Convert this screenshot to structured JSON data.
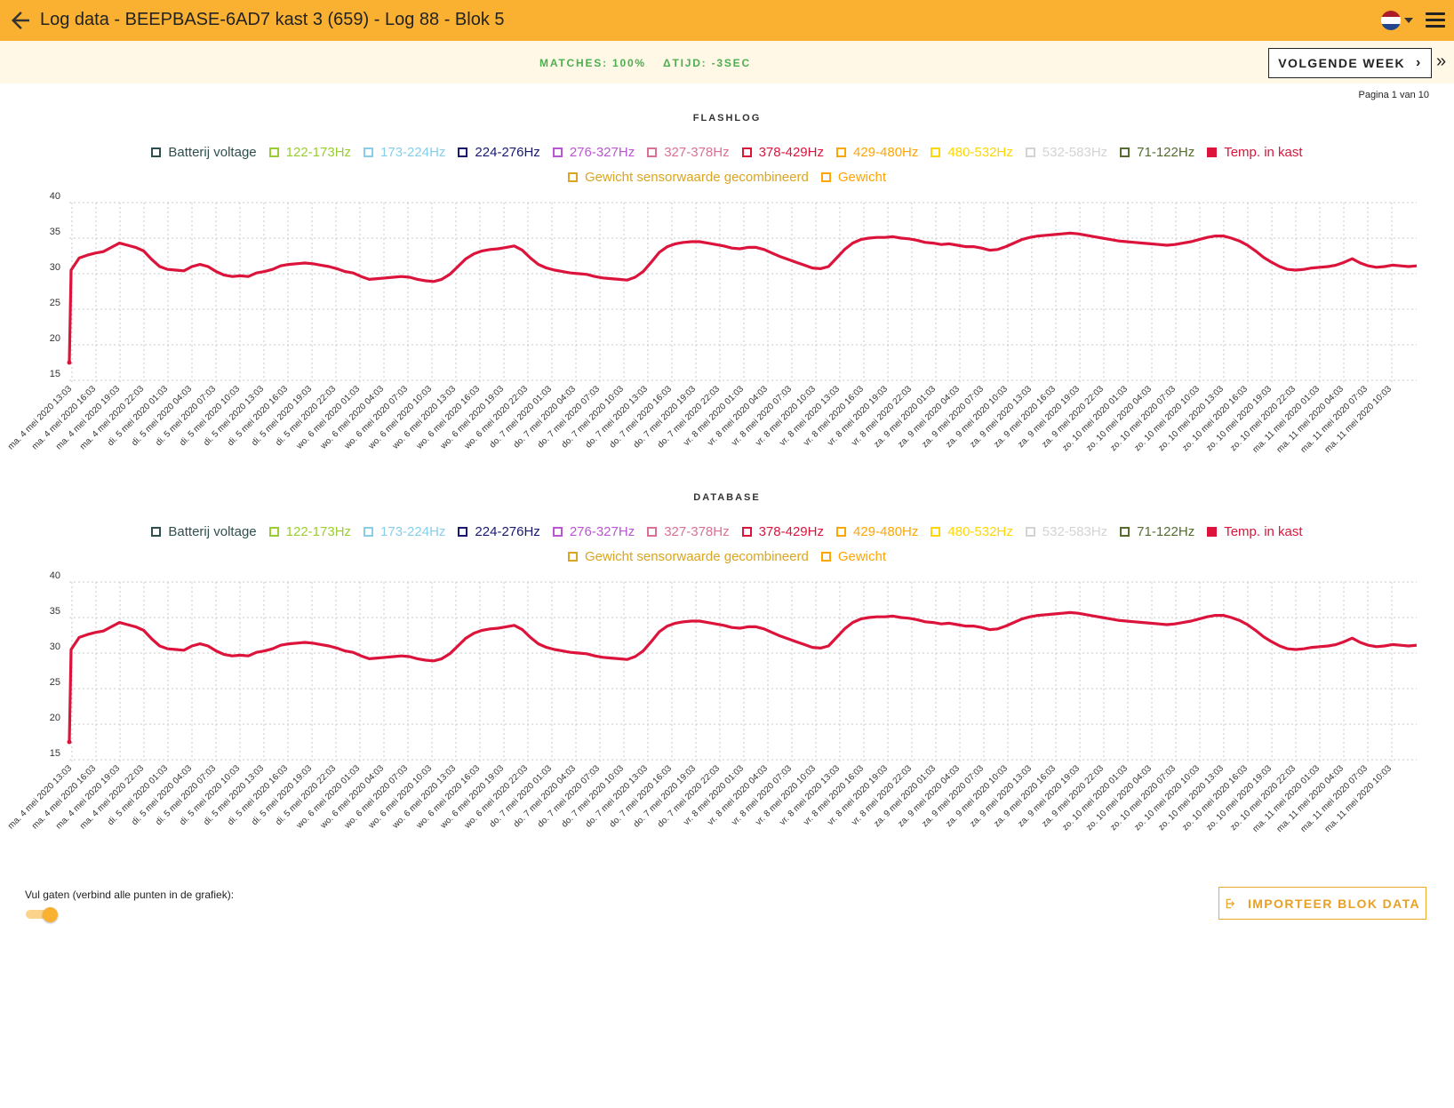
{
  "header": {
    "title": "Log data - BEEPBASE-6AD7 kast 3 (659) - Log 88 - Blok 5"
  },
  "summary": {
    "matches": "MATCHES: 100%",
    "delta": "ΔTIJD: -3SEC"
  },
  "nav": {
    "next_week": "VOLGENDE WEEK",
    "pagina": "Pagina 1 van 10"
  },
  "legend": [
    {
      "label": "Batterij voltage",
      "color": "#2f4f4f",
      "filled": false
    },
    {
      "label": "122-173Hz",
      "color": "#9acd32",
      "filled": false
    },
    {
      "label": "173-224Hz",
      "color": "#87ceeb",
      "filled": false
    },
    {
      "label": "224-276Hz",
      "color": "#191970",
      "filled": false
    },
    {
      "label": "276-327Hz",
      "color": "#ba55d3",
      "filled": false
    },
    {
      "label": "327-378Hz",
      "color": "#db7093",
      "filled": false
    },
    {
      "label": "378-429Hz",
      "color": "#dc143c",
      "filled": false
    },
    {
      "label": "429-480Hz",
      "color": "#ffa500",
      "filled": false
    },
    {
      "label": "480-532Hz",
      "color": "#ffd700",
      "filled": false
    },
    {
      "label": "532-583Hz",
      "color": "#d3d3d3",
      "filled": false
    },
    {
      "label": "71-122Hz",
      "color": "#556b2f",
      "filled": false
    },
    {
      "label": "Temp. in kast",
      "color": "#dc143c",
      "filled": true
    },
    {
      "label": "Gewicht sensorwaarde gecombineerd",
      "color": "#daa520",
      "filled": false
    },
    {
      "label": "Gewicht",
      "color": "#ffa500",
      "filled": false
    }
  ],
  "chart_data": [
    {
      "name": "FLASHLOG",
      "type": "line",
      "yticks": [
        "40",
        "35",
        "30",
        "25",
        "20",
        "15"
      ],
      "ylim": [
        15,
        40
      ],
      "grid": true,
      "xticks": [
        "ma. 4 mei 2020 13:03",
        "ma. 4 mei 2020 16:03",
        "ma. 4 mei 2020 19:03",
        "ma. 4 mei 2020 22:03",
        "di. 5 mei 2020 01:03",
        "di. 5 mei 2020 04:03",
        "di. 5 mei 2020 07:03",
        "di. 5 mei 2020 10:03",
        "di. 5 mei 2020 13:03",
        "di. 5 mei 2020 16:03",
        "di. 5 mei 2020 19:03",
        "di. 5 mei 2020 22:03",
        "wo. 6 mei 2020 01:03",
        "wo. 6 mei 2020 04:03",
        "wo. 6 mei 2020 07:03",
        "wo. 6 mei 2020 10:03",
        "wo. 6 mei 2020 13:03",
        "wo. 6 mei 2020 16:03",
        "wo. 6 mei 2020 19:03",
        "wo. 6 mei 2020 22:03",
        "do. 7 mei 2020 01:03",
        "do. 7 mei 2020 04:03",
        "do. 7 mei 2020 07:03",
        "do. 7 mei 2020 10:03",
        "do. 7 mei 2020 13:03",
        "do. 7 mei 2020 16:03",
        "do. 7 mei 2020 19:03",
        "do. 7 mei 2020 22:03",
        "vr. 8 mei 2020 01:03",
        "vr. 8 mei 2020 04:03",
        "vr. 8 mei 2020 07:03",
        "vr. 8 mei 2020 10:03",
        "vr. 8 mei 2020 13:03",
        "vr. 8 mei 2020 16:03",
        "vr. 8 mei 2020 19:03",
        "vr. 8 mei 2020 22:03",
        "za. 9 mei 2020 01:03",
        "za. 9 mei 2020 04:03",
        "za. 9 mei 2020 07:03",
        "za. 9 mei 2020 10:03",
        "za. 9 mei 2020 13:03",
        "za. 9 mei 2020 16:03",
        "za. 9 mei 2020 19:03",
        "za. 9 mei 2020 22:03",
        "zo. 10 mei 2020 01:03",
        "zo. 10 mei 2020 04:03",
        "zo. 10 mei 2020 07:03",
        "zo. 10 mei 2020 10:03",
        "zo. 10 mei 2020 13:03",
        "zo. 10 mei 2020 16:03",
        "zo. 10 mei 2020 19:03",
        "zo. 10 mei 2020 22:03",
        "ma. 11 mei 2020 01:03",
        "ma. 11 mei 2020 04:03",
        "ma. 11 mei 2020 07:03",
        "ma. 11 mei 2020 10:03"
      ],
      "series": [
        {
          "name": "Temp. in kast",
          "color": "#dc143c",
          "values": [
            17.5,
            30.5,
            32.2,
            32.6,
            32.9,
            33.1,
            33.7,
            34.3,
            34.0,
            33.7,
            33.2,
            32.0,
            31.0,
            30.6,
            30.5,
            30.4,
            31.0,
            31.3,
            31.0,
            30.3,
            29.8,
            29.6,
            29.7,
            29.6,
            30.1,
            30.3,
            30.6,
            31.1,
            31.3,
            31.4,
            31.5,
            31.4,
            31.2,
            31.0,
            30.7,
            30.3,
            30.1,
            29.6,
            29.2,
            29.3,
            29.4,
            29.5,
            29.6,
            29.5,
            29.2,
            29.0,
            28.9,
            29.2,
            29.9,
            31.0,
            32.1,
            32.8,
            33.2,
            33.4,
            33.5,
            33.7,
            33.9,
            33.3,
            32.2,
            31.3,
            30.8,
            30.5,
            30.3,
            30.1,
            30.0,
            29.9,
            29.6,
            29.4,
            29.3,
            29.2,
            29.1,
            29.5,
            30.3,
            31.6,
            33.0,
            33.8,
            34.2,
            34.4,
            34.5,
            34.5,
            34.3,
            34.1,
            33.9,
            33.6,
            33.5,
            33.7,
            33.7,
            33.4,
            32.9,
            32.4,
            32.0,
            31.6,
            31.2,
            30.8,
            30.7,
            31.0,
            32.2,
            33.4,
            34.3,
            34.8,
            35.0,
            35.1,
            35.1,
            35.2,
            35.0,
            34.9,
            34.7,
            34.4,
            34.3,
            34.1,
            34.2,
            34.0,
            33.8,
            33.8,
            33.6,
            33.3,
            33.4,
            33.8,
            34.3,
            34.8,
            35.1,
            35.3,
            35.4,
            35.5,
            35.6,
            35.7,
            35.6,
            35.4,
            35.2,
            35.0,
            34.8,
            34.6,
            34.5,
            34.4,
            34.3,
            34.2,
            34.1,
            34.0,
            34.1,
            34.3,
            34.5,
            34.8,
            35.1,
            35.3,
            35.3,
            35.0,
            34.6,
            34.0,
            33.2,
            32.3,
            31.6,
            31.0,
            30.6,
            30.5,
            30.6,
            30.8,
            30.9,
            31.0,
            31.2,
            31.6,
            32.1,
            31.5,
            31.1,
            30.9,
            31.0,
            31.2,
            31.1,
            31.0,
            31.1
          ]
        }
      ]
    },
    {
      "name": "DATABASE",
      "type": "line",
      "yticks": [
        "40",
        "35",
        "30",
        "25",
        "20",
        "15"
      ],
      "ylim": [
        15,
        40
      ],
      "grid": true,
      "xticks": [
        "ma. 4 mei 2020 13:03",
        "ma. 4 mei 2020 16:03",
        "ma. 4 mei 2020 19:03",
        "ma. 4 mei 2020 22:03",
        "di. 5 mei 2020 01:03",
        "di. 5 mei 2020 04:03",
        "di. 5 mei 2020 07:03",
        "di. 5 mei 2020 10:03",
        "di. 5 mei 2020 13:03",
        "di. 5 mei 2020 16:03",
        "di. 5 mei 2020 19:03",
        "di. 5 mei 2020 22:03",
        "wo. 6 mei 2020 01:03",
        "wo. 6 mei 2020 04:03",
        "wo. 6 mei 2020 07:03",
        "wo. 6 mei 2020 10:03",
        "wo. 6 mei 2020 13:03",
        "wo. 6 mei 2020 16:03",
        "wo. 6 mei 2020 19:03",
        "wo. 6 mei 2020 22:03",
        "do. 7 mei 2020 01:03",
        "do. 7 mei 2020 04:03",
        "do. 7 mei 2020 07:03",
        "do. 7 mei 2020 10:03",
        "do. 7 mei 2020 13:03",
        "do. 7 mei 2020 16:03",
        "do. 7 mei 2020 19:03",
        "do. 7 mei 2020 22:03",
        "vr. 8 mei 2020 01:03",
        "vr. 8 mei 2020 04:03",
        "vr. 8 mei 2020 07:03",
        "vr. 8 mei 2020 10:03",
        "vr. 8 mei 2020 13:03",
        "vr. 8 mei 2020 16:03",
        "vr. 8 mei 2020 19:03",
        "vr. 8 mei 2020 22:03",
        "za. 9 mei 2020 01:03",
        "za. 9 mei 2020 04:03",
        "za. 9 mei 2020 07:03",
        "za. 9 mei 2020 10:03",
        "za. 9 mei 2020 13:03",
        "za. 9 mei 2020 16:03",
        "za. 9 mei 2020 19:03",
        "za. 9 mei 2020 22:03",
        "zo. 10 mei 2020 01:03",
        "zo. 10 mei 2020 04:03",
        "zo. 10 mei 2020 07:03",
        "zo. 10 mei 2020 10:03",
        "zo. 10 mei 2020 13:03",
        "zo. 10 mei 2020 16:03",
        "zo. 10 mei 2020 19:03",
        "zo. 10 mei 2020 22:03",
        "ma. 11 mei 2020 01:03",
        "ma. 11 mei 2020 04:03",
        "ma. 11 mei 2020 07:03",
        "ma. 11 mei 2020 10:03"
      ],
      "series": [
        {
          "name": "Temp. in kast",
          "color": "#dc143c",
          "values": [
            17.5,
            30.5,
            32.2,
            32.6,
            32.9,
            33.1,
            33.7,
            34.3,
            34.0,
            33.7,
            33.2,
            32.0,
            31.0,
            30.6,
            30.5,
            30.4,
            31.0,
            31.3,
            31.0,
            30.3,
            29.8,
            29.6,
            29.7,
            29.6,
            30.1,
            30.3,
            30.6,
            31.1,
            31.3,
            31.4,
            31.5,
            31.4,
            31.2,
            31.0,
            30.7,
            30.3,
            30.1,
            29.6,
            29.2,
            29.3,
            29.4,
            29.5,
            29.6,
            29.5,
            29.2,
            29.0,
            28.9,
            29.2,
            29.9,
            31.0,
            32.1,
            32.8,
            33.2,
            33.4,
            33.5,
            33.7,
            33.9,
            33.3,
            32.2,
            31.3,
            30.8,
            30.5,
            30.3,
            30.1,
            30.0,
            29.9,
            29.6,
            29.4,
            29.3,
            29.2,
            29.1,
            29.5,
            30.3,
            31.6,
            33.0,
            33.8,
            34.2,
            34.4,
            34.5,
            34.5,
            34.3,
            34.1,
            33.9,
            33.6,
            33.5,
            33.7,
            33.7,
            33.4,
            32.9,
            32.4,
            32.0,
            31.6,
            31.2,
            30.8,
            30.7,
            31.0,
            32.2,
            33.4,
            34.3,
            34.8,
            35.0,
            35.1,
            35.1,
            35.2,
            35.0,
            34.9,
            34.7,
            34.4,
            34.3,
            34.1,
            34.2,
            34.0,
            33.8,
            33.8,
            33.6,
            33.3,
            33.4,
            33.8,
            34.3,
            34.8,
            35.1,
            35.3,
            35.4,
            35.5,
            35.6,
            35.7,
            35.6,
            35.4,
            35.2,
            35.0,
            34.8,
            34.6,
            34.5,
            34.4,
            34.3,
            34.2,
            34.1,
            34.0,
            34.1,
            34.3,
            34.5,
            34.8,
            35.1,
            35.3,
            35.3,
            35.0,
            34.6,
            34.0,
            33.2,
            32.3,
            31.6,
            31.0,
            30.6,
            30.5,
            30.6,
            30.8,
            30.9,
            31.0,
            31.2,
            31.6,
            32.1,
            31.5,
            31.1,
            30.9,
            31.0,
            31.2,
            31.1,
            31.0,
            31.1
          ]
        }
      ]
    }
  ],
  "footer": {
    "toggle_label": "Vul gaten (verbind alle punten in de grafiek):",
    "toggle_on": true,
    "import_label": "IMPORTEER BLOK DATA"
  }
}
